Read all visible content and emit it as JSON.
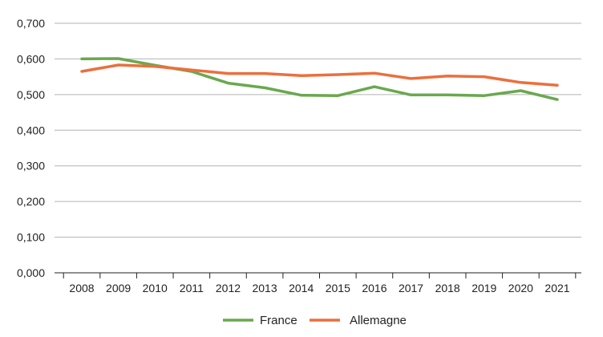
{
  "chart_data": {
    "type": "line",
    "x": [
      "2008",
      "2009",
      "2010",
      "2011",
      "2012",
      "2013",
      "2014",
      "2015",
      "2016",
      "2017",
      "2018",
      "2019",
      "2020",
      "2021"
    ],
    "series": [
      {
        "name": "France",
        "color": "#6aa84f",
        "values": [
          0.6,
          0.601,
          0.582,
          0.565,
          0.532,
          0.519,
          0.498,
          0.497,
          0.522,
          0.499,
          0.499,
          0.497,
          0.511,
          0.486
        ]
      },
      {
        "name": "Allemagne",
        "color": "#ec6f3d",
        "values": [
          0.565,
          0.583,
          0.579,
          0.569,
          0.559,
          0.559,
          0.553,
          0.556,
          0.56,
          0.545,
          0.552,
          0.55,
          0.534,
          0.526
        ]
      }
    ],
    "ylim": [
      0,
      0.7
    ],
    "yticks": [
      "0,000",
      "0,100",
      "0,200",
      "0,300",
      "0,400",
      "0,500",
      "0,600",
      "0,700"
    ],
    "grid": true,
    "legend_position": "bottom-center",
    "title": "",
    "xlabel": "",
    "ylabel": ""
  }
}
